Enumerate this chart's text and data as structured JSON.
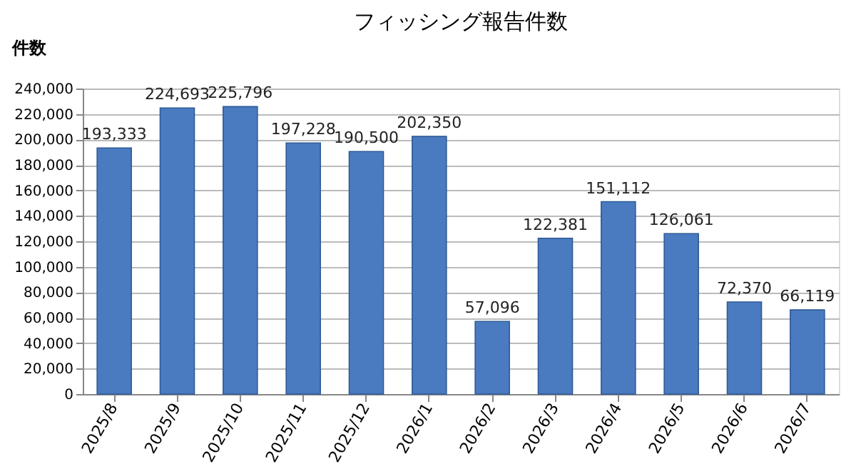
{
  "chart_data": {
    "type": "bar",
    "title": "フィッシング報告件数",
    "ylabel": "件数",
    "categories": [
      "2025/8",
      "2025/9",
      "2025/10",
      "2025/11",
      "2025/12",
      "2026/1",
      "2026/2",
      "2026/3",
      "2026/4",
      "2026/5",
      "2026/6",
      "2026/7"
    ],
    "values": [
      193333,
      224693,
      225796,
      197228,
      190500,
      202350,
      57096,
      122381,
      151112,
      126061,
      72370,
      66119
    ],
    "value_labels": [
      "193,333",
      "224,693",
      "225,796",
      "197,228",
      "190,500",
      "202,350",
      "57,096",
      "122,381",
      "151,112",
      "126,061",
      "72,370",
      "66,119"
    ],
    "color": "#4a7bc0",
    "ylim": [
      0,
      240000
    ],
    "yticks": [
      {
        "value": 0,
        "label": "0"
      },
      {
        "value": 20000,
        "label": "20,000"
      },
      {
        "value": 40000,
        "label": "40,000"
      },
      {
        "value": 60000,
        "label": "60,000"
      },
      {
        "value": 80000,
        "label": "80,000"
      },
      {
        "value": 100000,
        "label": "100,000"
      },
      {
        "value": 120000,
        "label": "120,000"
      },
      {
        "value": 140000,
        "label": "140,000"
      },
      {
        "value": 160000,
        "label": "160,000"
      },
      {
        "value": 180000,
        "label": "180,000"
      },
      {
        "value": 200000,
        "label": "200,000"
      },
      {
        "value": 220000,
        "label": "220,000"
      },
      {
        "value": 240000,
        "label": "240,000"
      }
    ],
    "grid": "y"
  }
}
